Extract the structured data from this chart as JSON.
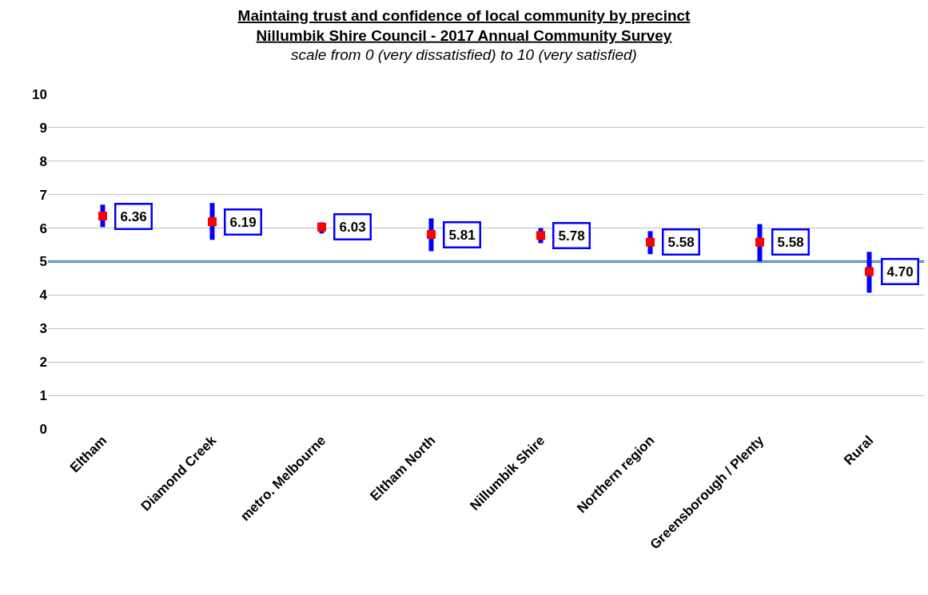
{
  "chart_data": {
    "type": "scatter",
    "title": "Maintaing trust and confidence of local community by precinct\nNillumbik Shire Council - 2017 Annual Community Survey",
    "subtitle": "scale from 0 (very dissatisfied) to 10 (very satisfied)",
    "categories": [
      "Eltham",
      "Diamond Creek",
      "metro. Melbourne",
      "Eltham North",
      "Nillumbik Shire",
      "Northern region",
      "Greensborough / Plenty",
      "Rural"
    ],
    "series": [
      {
        "color": "#ff0000",
        "values": [
          6.36,
          6.19,
          6.03,
          5.81,
          5.78,
          5.58,
          5.58,
          4.7
        ],
        "errors": [
          [
            6.03,
            6.7
          ],
          [
            5.65,
            6.75
          ],
          [
            5.84,
            6.17
          ],
          [
            5.31,
            6.29
          ],
          [
            5.55,
            6.0
          ],
          [
            5.22,
            5.91
          ],
          [
            5.0,
            6.12
          ],
          [
            4.07,
            5.29
          ]
        ],
        "value_labels": [
          "6.36",
          "6.19",
          "6.03",
          "5.81",
          "5.78",
          "5.58",
          "5.58",
          "4.70"
        ]
      }
    ],
    "marker": "square",
    "ylim": [
      0,
      10
    ],
    "yticks": [
      0,
      1,
      2,
      3,
      4,
      5,
      6,
      7,
      8,
      9,
      10
    ],
    "grid": "y",
    "ref_lines": [
      {
        "axis": "y",
        "value": 5,
        "color": "#1f78c1"
      }
    ]
  }
}
